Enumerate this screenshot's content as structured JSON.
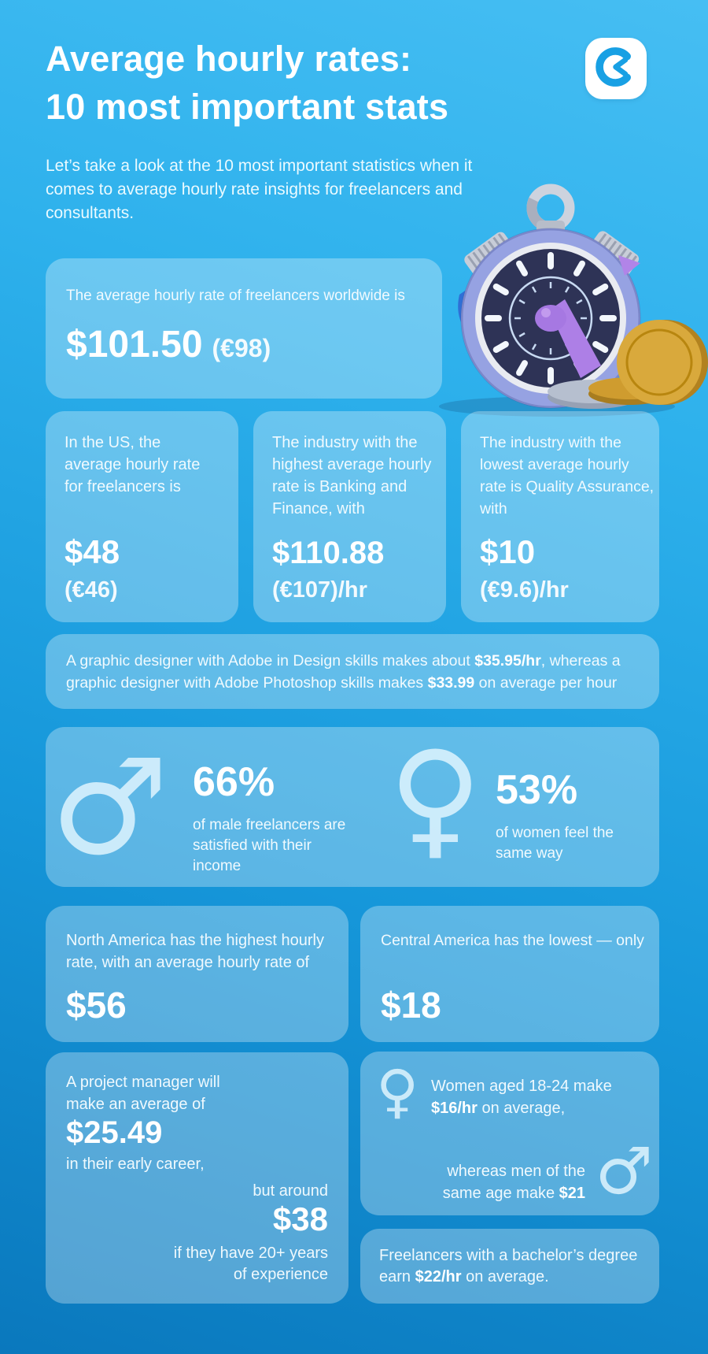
{
  "header": {
    "title_line1": "Average hourly rates:",
    "title_line2": "10 most important stats",
    "subtitle": "Let’s take a look at the 10 most important statistics when it comes to average hourly rate insights for freelancers and consultants.",
    "brand_color": "#18a0e4"
  },
  "cards": {
    "worldwide": {
      "label": "The average hourly rate of freelancers worldwide is",
      "value": "$101.50",
      "value_alt": "(€98)"
    },
    "us": {
      "label": "In the US, the average hourly rate for freelancers is",
      "value": "$48",
      "value_alt": "(€46)"
    },
    "highest_industry": {
      "label": "The industry with the highest average hourly rate is Banking and Finance, with",
      "value": "$110.88",
      "value_alt": "(€107)/hr"
    },
    "lowest_industry": {
      "label": "The industry with the lowest average hourly rate is Quality Assurance, with",
      "value": "$10",
      "value_alt": "(€9.6)/hr"
    },
    "designer": {
      "segments": [
        {
          "t": "A graphic designer with Adobe in Design skills makes about ",
          "b": false
        },
        {
          "t": "$35.95/hr",
          "b": true
        },
        {
          "t": ", whereas a graphic designer with Adobe Photoshop skills makes ",
          "b": false
        },
        {
          "t": "$33.99",
          "b": true
        },
        {
          "t": " on average per hour",
          "b": false
        }
      ]
    },
    "satisfaction": {
      "male_pct": "66%",
      "male_caption": "of male freelancers are satisfied with their income",
      "female_pct": "53%",
      "female_caption": "of women feel the same way"
    },
    "north_america": {
      "label": "North America has the highest hourly rate, with an average hourly rate of",
      "value": "$56"
    },
    "central_america": {
      "label": "Central America has the lowest — only",
      "value": "$18"
    },
    "project_manager": {
      "intro": "A project manager will make an average of",
      "early_value": "$25.49",
      "early_suffix": "in their early career,",
      "but_label": "but around",
      "late_value": "$38",
      "late_suffix": "if they have 20+ years of experience"
    },
    "age_gender": {
      "women_segments": [
        {
          "t": "Women aged 18-24 make ",
          "b": false
        },
        {
          "t": "$16/hr",
          "b": true
        },
        {
          "t": " on average,",
          "b": false
        }
      ],
      "men_segments": [
        {
          "t": "whereas men of the same age make ",
          "b": false
        },
        {
          "t": "$21",
          "b": true
        }
      ]
    },
    "bachelor": {
      "segments": [
        {
          "t": "Freelancers with a bachelor’s degree earn ",
          "b": false
        },
        {
          "t": "$22/hr",
          "b": true
        },
        {
          "t": " on average.",
          "b": false
        }
      ]
    }
  }
}
